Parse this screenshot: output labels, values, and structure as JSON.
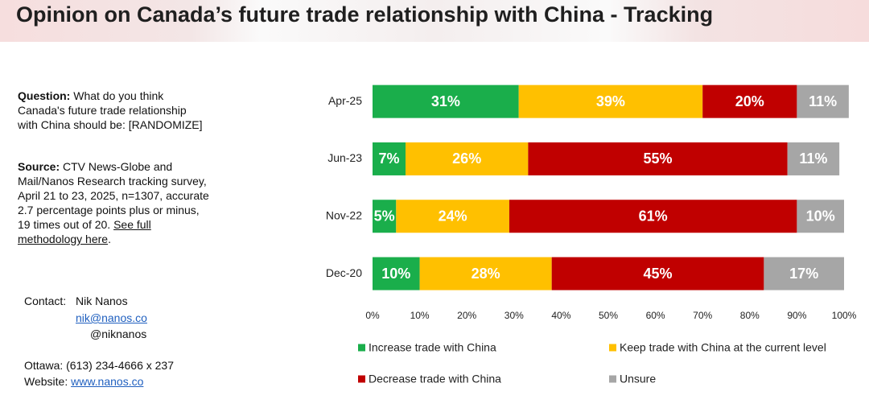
{
  "chart_data": {
    "type": "stacked-bar-horizontal",
    "title": "Opinion on Canada’s future trade relationship with China - Tracking",
    "categories": [
      "Apr-25",
      "Jun-23",
      "Nov-22",
      "Dec-20"
    ],
    "series": [
      {
        "name": "Increase trade with China",
        "color": "#1aae4b",
        "values": [
          31,
          7,
          5,
          10
        ],
        "value_labels": [
          "31%",
          "7%",
          "5%",
          "10%"
        ]
      },
      {
        "name": "Keep trade with China at the current level",
        "color": "#ffc000",
        "values": [
          39,
          26,
          24,
          28
        ],
        "value_labels": [
          "39%",
          "26%",
          "24%",
          "28%"
        ]
      },
      {
        "name": "Decrease trade with China",
        "color": "#c00000",
        "values": [
          20,
          55,
          61,
          45
        ],
        "value_labels": [
          "20%",
          "55%",
          "61%",
          "45%"
        ]
      },
      {
        "name": "Unsure",
        "color": "#a6a6a6",
        "values": [
          11,
          11,
          10,
          17
        ],
        "value_labels": [
          "11%",
          "11%",
          "10%",
          "17%"
        ]
      }
    ],
    "xlim": [
      0,
      100
    ],
    "xticks": [
      {
        "value": 0,
        "label": "0%"
      },
      {
        "value": 10,
        "label": "10%"
      },
      {
        "value": 20,
        "label": "20%"
      },
      {
        "value": 30,
        "label": "30%"
      },
      {
        "value": 40,
        "label": "40%"
      },
      {
        "value": 50,
        "label": "50%"
      },
      {
        "value": 60,
        "label": "60%"
      },
      {
        "value": 70,
        "label": "70%"
      },
      {
        "value": 80,
        "label": "80%"
      },
      {
        "value": 90,
        "label": "90%"
      },
      {
        "value": 100,
        "label": "100%"
      }
    ]
  },
  "sidebar": {
    "question_label": "Question:",
    "question_text": "What do you think Canada's future trade relationship with China should be: [RANDOMIZE]",
    "source_label": "Source:",
    "source_text": "CTV News-Globe and Mail/Nanos Research tracking survey, April 21 to 23, 2025, n=1307, accurate 2.7 percentage points plus or minus, 19 times out of 20.",
    "source_link": "See full methodology here",
    "source_end": ".",
    "contact_label": "Contact:",
    "contact_name": "Nik Nanos",
    "contact_email": "nik@nanos.co",
    "contact_handle": "@niknanos",
    "phone": "Ottawa: (613) 234-4666 x 237",
    "website_label": "Website:",
    "website": "www.nanos.co"
  }
}
